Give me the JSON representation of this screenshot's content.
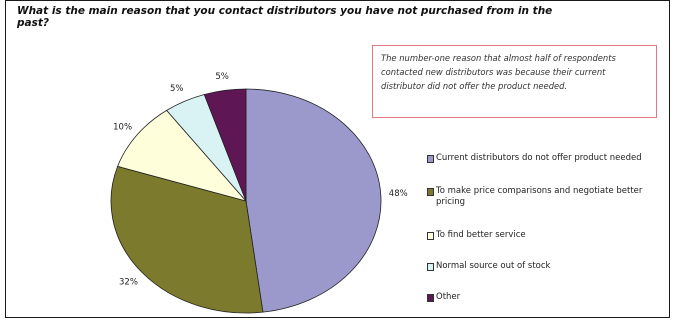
{
  "title": "What is the main reason that you contact distributors you have not purchased from in the past?",
  "callout": "The number-one reason that almost half of respondents contacted new distributors was because their current distributor did not offer the product needed.",
  "chart_data": {
    "type": "pie",
    "title": "What is the main reason that you contact distributors you have not purchased from in the past?",
    "start_angle_deg": 0,
    "direction": "clockwise",
    "legend_position": "right",
    "slices": [
      {
        "label": "Current distributors do not offer product needed",
        "value": 48,
        "display": "48%",
        "color": "#9b99cc"
      },
      {
        "label": "To make price comparisons and negotiate better pricing",
        "value": 32,
        "display": "32%",
        "color": "#7c7a2c"
      },
      {
        "label": "To find better service",
        "value": 10,
        "display": "10%",
        "color": "#fffedb"
      },
      {
        "label": "Normal source out of stock",
        "value": 5,
        "display": "5%",
        "color": "#d9f2f3"
      },
      {
        "label": "Other",
        "value": 5,
        "display": "5%",
        "color": "#5e1654"
      }
    ]
  }
}
